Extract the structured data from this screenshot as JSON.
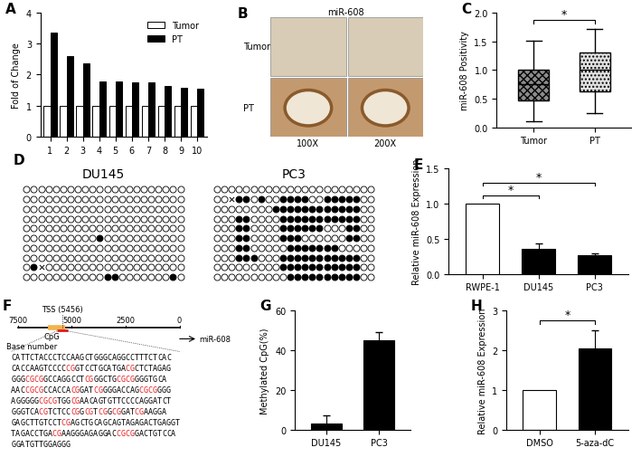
{
  "panel_labels": [
    "A",
    "B",
    "C",
    "D",
    "E",
    "F",
    "G",
    "H"
  ],
  "chart_data": [
    {
      "type": "bar",
      "categories": [
        "1",
        "2",
        "3",
        "4",
        "5",
        "6",
        "7",
        "8",
        "9",
        "10"
      ],
      "series": [
        {
          "name": "Tumor",
          "color": "#ffffff",
          "values": [
            1,
            1,
            1,
            1,
            1,
            1,
            1,
            1,
            1,
            1
          ]
        },
        {
          "name": "PT",
          "color": "#000000",
          "values": [
            3.35,
            2.6,
            2.38,
            1.77,
            1.77,
            1.76,
            1.75,
            1.62,
            1.58,
            1.55
          ]
        }
      ],
      "y_label": "Fold of Change",
      "ylim": [
        0,
        4
      ],
      "yticks": [
        0,
        1,
        2,
        3,
        4
      ],
      "legend": "upper right"
    },
    {
      "type": "box",
      "categories": [
        "Tumor",
        "PT"
      ],
      "stats": [
        {
          "whislo": 0.1,
          "q1": 0.47,
          "med": 0.75,
          "q3": 1.0,
          "whishi": 1.52
        },
        {
          "whislo": 0.25,
          "q1": 0.62,
          "med": 1.0,
          "q3": 1.3,
          "whishi": 1.72
        }
      ],
      "colors": [
        "#8c8c8c",
        "#e0e0e0"
      ],
      "y_label": "miR-608 Positivity",
      "ylim": [
        0,
        2
      ],
      "yticks": [
        {
          "value": 0,
          "label": "0.0"
        },
        {
          "value": 0.5,
          "label": "0.5"
        },
        {
          "value": 1,
          "label": "1.0"
        },
        {
          "value": 1.5,
          "label": "1.5"
        },
        {
          "value": 2,
          "label": "2.0"
        }
      ],
      "annotations": [
        {
          "text": "*",
          "between": [
            0,
            1
          ]
        }
      ]
    },
    {
      "type": "bar",
      "categories": [
        "RWPE-1",
        "DU145",
        "PC3"
      ],
      "values": [
        1.0,
        0.35,
        0.27
      ],
      "errors": [
        null,
        0.08,
        0.02
      ],
      "colors": [
        "#ffffff",
        "#000000",
        "#000000"
      ],
      "y_label": "Relative miR-608 Expression",
      "ylim": [
        0,
        1.5
      ],
      "yticks": [
        {
          "value": 0,
          "label": "0.0"
        },
        {
          "value": 0.5,
          "label": "0.5"
        },
        {
          "value": 1,
          "label": "1.0"
        },
        {
          "value": 1.5,
          "label": "1.5"
        }
      ],
      "annotations": [
        {
          "text": "*",
          "between": [
            0,
            1
          ]
        },
        {
          "text": "*",
          "between": [
            0,
            2
          ]
        }
      ]
    },
    {
      "type": "bar",
      "categories": [
        "DU145",
        "PC3"
      ],
      "values": [
        3,
        45
      ],
      "errors": [
        4,
        4
      ],
      "colors": [
        "#000000",
        "#000000"
      ],
      "y_label": "Methylated CpG(%)",
      "ylim": [
        0,
        60
      ],
      "yticks": [
        0,
        20,
        40,
        60
      ]
    },
    {
      "type": "bar",
      "categories": [
        "DMSO",
        "5-aza-dC"
      ],
      "values": [
        1.0,
        2.05
      ],
      "errors": [
        null,
        0.45
      ],
      "colors": [
        "#ffffff",
        "#000000"
      ],
      "y_label": "Relative miR-608 Expression",
      "ylim": [
        0,
        3
      ],
      "yticks": [
        0,
        1,
        2,
        3
      ],
      "annotations": [
        {
          "text": "*",
          "between": [
            0,
            1
          ]
        }
      ]
    }
  ],
  "images": {
    "title": "miR-608",
    "rows": [
      "Tumor",
      "PT"
    ],
    "columns": [
      "100X",
      "200X"
    ]
  },
  "methylation": {
    "samples": [
      {
        "name": "DU145",
        "rows": [
          [
            0,
            0,
            0,
            0,
            0,
            0,
            0,
            0,
            0,
            0,
            0,
            0,
            0,
            0,
            0,
            0,
            0,
            0,
            0,
            0,
            0,
            0
          ],
          [
            0,
            0,
            0,
            0,
            0,
            0,
            0,
            0,
            0,
            0,
            0,
            0,
            0,
            0,
            0,
            0,
            0,
            0,
            0,
            0,
            0,
            0
          ],
          [
            0,
            0,
            0,
            0,
            0,
            0,
            0,
            0,
            0,
            0,
            0,
            0,
            0,
            0,
            0,
            0,
            0,
            0,
            0,
            0,
            0,
            0
          ],
          [
            0,
            0,
            0,
            0,
            0,
            0,
            0,
            0,
            0,
            0,
            0,
            0,
            0,
            0,
            0,
            0,
            0,
            0,
            0,
            0,
            0,
            0
          ],
          [
            0,
            0,
            0,
            0,
            0,
            0,
            0,
            0,
            0,
            0,
            0,
            0,
            0,
            0,
            0,
            0,
            0,
            0,
            0,
            0,
            0,
            0
          ],
          [
            0,
            0,
            0,
            0,
            0,
            0,
            0,
            0,
            0,
            0,
            1,
            0,
            0,
            0,
            0,
            0,
            0,
            0,
            0,
            0,
            0,
            0
          ],
          [
            0,
            0,
            0,
            0,
            0,
            0,
            0,
            0,
            0,
            0,
            0,
            0,
            0,
            0,
            0,
            0,
            0,
            0,
            0,
            0,
            0,
            0
          ],
          [
            0,
            0,
            0,
            0,
            0,
            0,
            0,
            0,
            0,
            0,
            0,
            0,
            0,
            0,
            0,
            0,
            0,
            0,
            0,
            0,
            0,
            0
          ],
          [
            0,
            1,
            null,
            0,
            0,
            0,
            0,
            0,
            0,
            0,
            0,
            0,
            0,
            0,
            0,
            0,
            0,
            0,
            0,
            0,
            0,
            0
          ],
          [
            0,
            0,
            0,
            0,
            0,
            0,
            0,
            0,
            0,
            0,
            0,
            1,
            1,
            0,
            0,
            0,
            0,
            0,
            0,
            0,
            1,
            0
          ]
        ]
      },
      {
        "name": "PC3",
        "rows": [
          [
            0,
            0,
            0,
            0,
            0,
            0,
            0,
            0,
            0,
            0,
            0,
            0,
            0,
            0,
            0,
            0,
            0,
            0,
            0,
            0,
            0,
            0
          ],
          [
            0,
            0,
            null,
            1,
            1,
            0,
            1,
            0,
            0,
            1,
            1,
            1,
            1,
            0,
            0,
            1,
            1,
            1,
            1,
            1,
            0,
            0
          ],
          [
            0,
            0,
            0,
            0,
            0,
            0,
            0,
            0,
            1,
            1,
            1,
            1,
            1,
            1,
            1,
            1,
            1,
            1,
            1,
            1,
            0,
            0
          ],
          [
            0,
            0,
            0,
            1,
            1,
            0,
            0,
            0,
            0,
            1,
            1,
            1,
            1,
            1,
            1,
            1,
            1,
            1,
            1,
            1,
            0,
            0
          ],
          [
            0,
            0,
            0,
            1,
            1,
            0,
            0,
            0,
            0,
            1,
            1,
            1,
            1,
            1,
            1,
            0,
            0,
            0,
            1,
            1,
            0,
            0
          ],
          [
            0,
            0,
            0,
            1,
            1,
            0,
            0,
            0,
            0,
            1,
            1,
            1,
            0,
            0,
            0,
            0,
            0,
            0,
            1,
            1,
            0,
            0
          ],
          [
            0,
            0,
            0,
            1,
            1,
            0,
            0,
            0,
            0,
            0,
            1,
            1,
            1,
            1,
            1,
            1,
            1,
            0,
            0,
            0,
            0,
            0
          ],
          [
            0,
            0,
            0,
            1,
            1,
            1,
            0,
            0,
            0,
            1,
            1,
            1,
            1,
            1,
            1,
            1,
            1,
            1,
            1,
            1,
            0,
            0
          ],
          [
            0,
            0,
            0,
            0,
            0,
            0,
            0,
            0,
            0,
            1,
            1,
            1,
            1,
            1,
            1,
            1,
            1,
            1,
            1,
            1,
            0,
            0
          ],
          [
            0,
            0,
            0,
            0,
            0,
            0,
            0,
            0,
            0,
            0,
            1,
            1,
            1,
            1,
            1,
            1,
            1,
            1,
            1,
            1,
            0,
            0
          ]
        ]
      }
    ]
  },
  "gene_map": {
    "axis_label": "Base number",
    "lim": [
      7500,
      0
    ],
    "ticks": [
      7500,
      5000,
      2500,
      0
    ],
    "tss": {
      "label": "TSS (5456)",
      "position": 5456
    },
    "cpg": {
      "label": "CpG",
      "range": [
        6100,
        5300
      ],
      "color": "#f0b44c"
    },
    "region": {
      "range": [
        5700,
        5200
      ],
      "color": "#e41a1c"
    },
    "target": "miR-608",
    "highlight": "CG",
    "highlight_color": "#e41a1c",
    "sequence": [
      "CATTCTACCCTCCAAGCTGGGCAGGCCTTTCTCAC",
      "CACCAAGTCCCCCGGTCCTGCATGACGCTCTAGAG",
      "GGGCGCGGCCAGGCCTCGGGCTGCGCGGGGTGCA",
      "AACCGCGCCACCACGGATCGGGGACCAGCGCGGGG",
      "AGGGGGCGCGTGGCGAACAGTGTTCCCCAGGATCT",
      "GGGTCACGTCTCCCGGCGTCGGCGGATCGAAGGA",
      "GAGCTTGTCCTCGAGCTGCAGCAGTAGAGACTGAGGT",
      "TAGACCTGACGAAGGGAGAGGACCGCGGACTGTCCA",
      "GGATGTTGGAGGG"
    ]
  }
}
